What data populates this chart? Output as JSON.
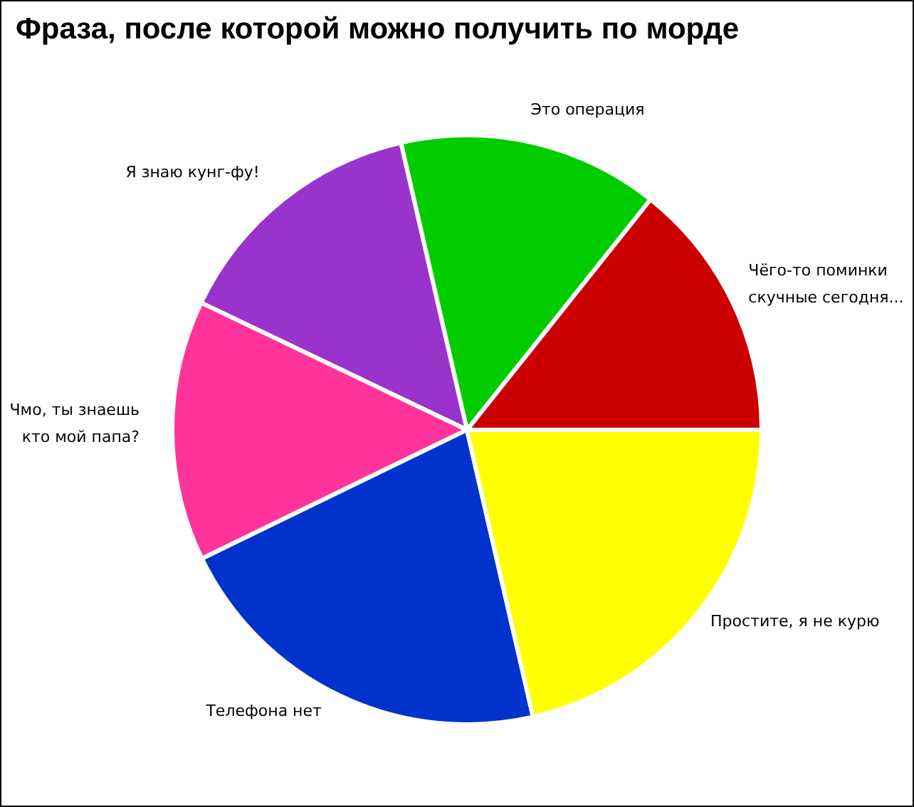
{
  "chart_data": {
    "type": "pie",
    "title": "Фраза, после которой можно получить по морде",
    "categories": [
      "Чёго-то поминки\nскучные сегодня...",
      "Это операция",
      "Я знаю кунг-фу!",
      "Чмо, ты знаешь\nкто мой папа?",
      "Телефона нет",
      "Простите, я не курю"
    ],
    "values": [
      14.3,
      14.3,
      14.3,
      14.3,
      21.4,
      21.4
    ],
    "colors": [
      "#cc0000",
      "#00cc00",
      "#9933cc",
      "#ff3399",
      "#0033cc",
      "#ffff00"
    ],
    "legend": false
  }
}
